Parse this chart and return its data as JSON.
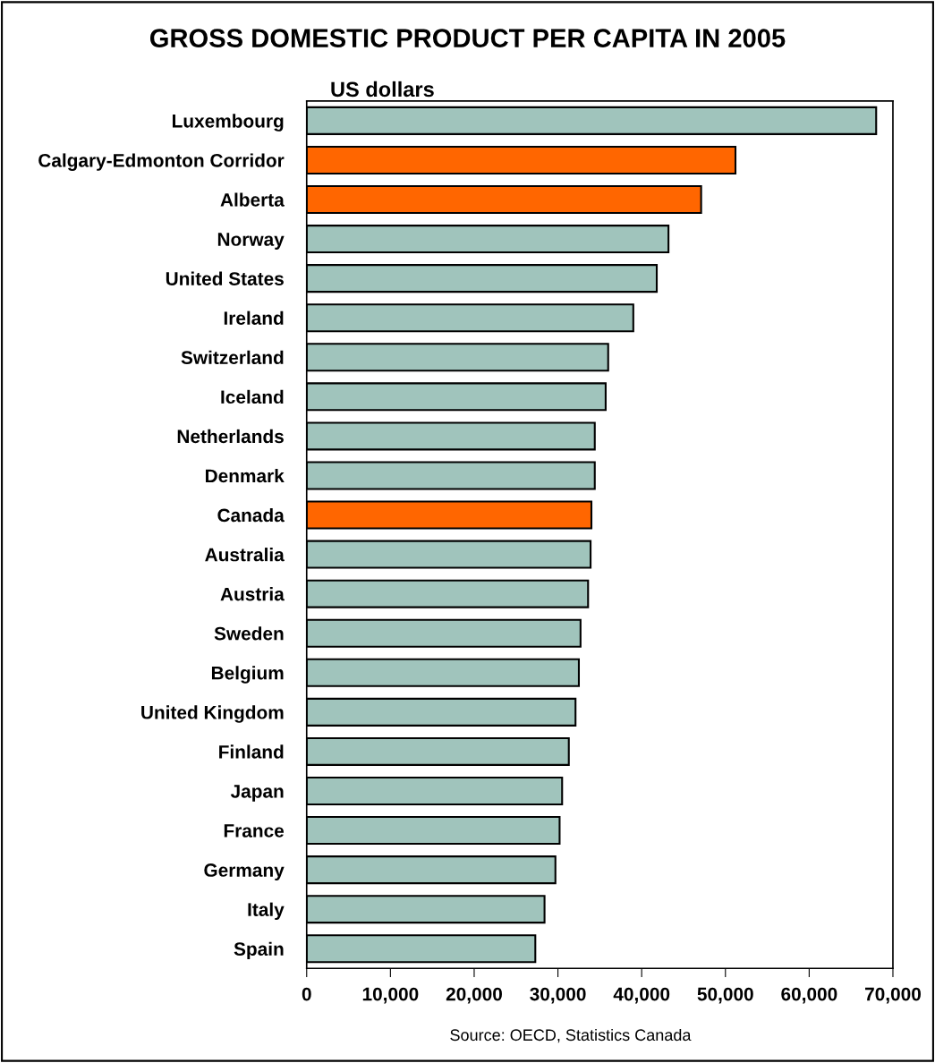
{
  "chart_data": {
    "type": "bar",
    "orientation": "horizontal",
    "title": "GROSS DOMESTIC PRODUCT PER CAPITA IN 2005",
    "subtitle": "US dollars",
    "categories": [
      "Luxembourg",
      "Calgary-Edmonton Corridor",
      "Alberta",
      "Norway",
      "United States",
      "Ireland",
      "Switzerland",
      "Iceland",
      "Netherlands",
      "Denmark",
      "Canada",
      "Australia",
      "Austria",
      "Sweden",
      "Belgium",
      "United Kingdom",
      "Finland",
      "Japan",
      "France",
      "Germany",
      "Italy",
      "Spain"
    ],
    "values": [
      68000,
      51200,
      47100,
      43200,
      41800,
      39000,
      36000,
      35700,
      34400,
      34400,
      34000,
      33900,
      33600,
      32700,
      32500,
      32100,
      31300,
      30500,
      30200,
      29700,
      28400,
      27300
    ],
    "colors": [
      "#a0c4bc",
      "#ff6600",
      "#ff6600",
      "#a0c4bc",
      "#a0c4bc",
      "#a0c4bc",
      "#a0c4bc",
      "#a0c4bc",
      "#a0c4bc",
      "#a0c4bc",
      "#ff6600",
      "#a0c4bc",
      "#a0c4bc",
      "#a0c4bc",
      "#a0c4bc",
      "#a0c4bc",
      "#a0c4bc",
      "#a0c4bc",
      "#a0c4bc",
      "#a0c4bc",
      "#a0c4bc",
      "#a0c4bc"
    ],
    "xlim": [
      0,
      70000
    ],
    "xticks": [
      0,
      {
        "value": 10000,
        "label": "10,000"
      },
      {
        "value": 20000,
        "label": "20,000"
      },
      {
        "value": 30000,
        "label": "30,000"
      },
      {
        "value": 40000,
        "label": "40,000"
      },
      {
        "value": 50000,
        "label": "50,000"
      },
      {
        "value": 60000,
        "label": "60,000"
      },
      {
        "value": 70000,
        "label": "70,000"
      }
    ],
    "grid": false,
    "annotations": [
      "Source: OECD, Statistics Canada"
    ]
  }
}
